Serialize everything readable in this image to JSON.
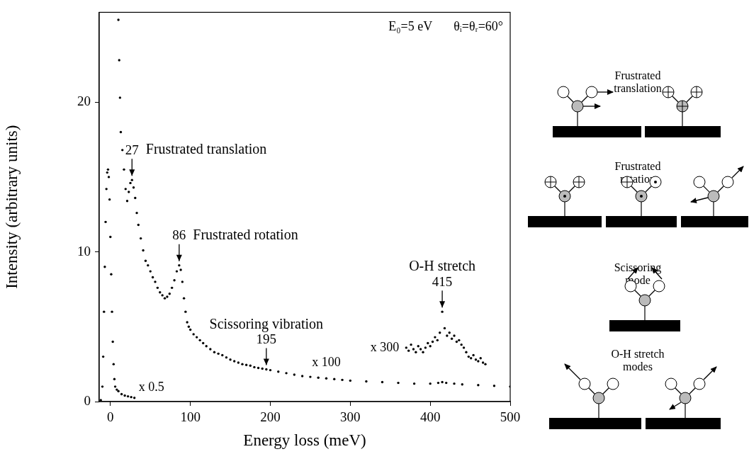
{
  "chart_data": {
    "type": "scatter",
    "xlabel": "Energy loss (meV)",
    "ylabel": "Intensity (arbitrary units)",
    "xlim": [
      -14,
      500
    ],
    "ylim": [
      0,
      26
    ],
    "xticks": [
      0,
      100,
      200,
      300,
      400,
      500
    ],
    "yticks": [
      0,
      10,
      20
    ],
    "grid": false,
    "marker": "dot",
    "annotations": [
      "E₀=5 eV",
      "θᵢ=θᵣ=60°"
    ],
    "series": [
      {
        "name": "x 0.5",
        "color": "#000000",
        "x": [
          -12,
          -10,
          -9,
          -8,
          -7,
          -6,
          -5,
          -4,
          -3,
          -2,
          -1,
          0,
          1,
          2,
          3,
          4,
          5,
          6,
          8,
          10,
          14,
          18,
          22,
          26,
          30
        ],
        "values": [
          0.1,
          1.0,
          3.0,
          6.0,
          9.0,
          12.0,
          14.2,
          15.3,
          15.5,
          15.0,
          13.5,
          11.0,
          8.5,
          6.0,
          4.0,
          2.5,
          1.5,
          1.0,
          0.8,
          0.7,
          0.5,
          0.4,
          0.35,
          0.3,
          0.25
        ]
      },
      {
        "name": "x 100",
        "color": "#000000",
        "x": [
          10,
          11,
          12,
          13,
          15,
          17,
          19,
          21,
          23,
          25,
          27,
          29,
          31,
          33,
          35,
          38,
          41,
          44,
          47,
          50,
          53,
          56,
          59,
          62,
          65,
          68,
          71,
          74,
          77,
          80,
          83,
          86,
          88,
          90,
          92,
          94,
          96,
          98,
          100,
          104,
          108,
          112,
          116,
          120,
          125,
          130,
          135,
          140,
          145,
          150,
          155,
          160,
          165,
          170,
          175,
          180,
          185,
          190,
          195,
          200,
          210,
          220,
          230,
          240,
          250,
          260,
          270,
          280,
          290,
          300,
          320,
          340,
          360,
          380,
          400,
          410,
          415,
          420,
          430,
          440,
          460,
          480,
          500
        ],
        "values": [
          25.5,
          22.8,
          20.3,
          18.0,
          16.8,
          15.5,
          14.2,
          13.4,
          14.0,
          14.6,
          14.8,
          14.3,
          13.6,
          12.6,
          11.8,
          10.9,
          10.1,
          9.4,
          9.1,
          8.7,
          8.3,
          8.0,
          7.6,
          7.3,
          7.1,
          6.9,
          7.0,
          7.2,
          7.6,
          8.1,
          8.7,
          9.1,
          8.8,
          8.0,
          6.9,
          6.0,
          5.3,
          5.0,
          4.8,
          4.5,
          4.3,
          4.1,
          3.9,
          3.7,
          3.5,
          3.3,
          3.2,
          3.1,
          2.95,
          2.8,
          2.7,
          2.6,
          2.5,
          2.45,
          2.4,
          2.3,
          2.25,
          2.2,
          2.15,
          2.1,
          2.0,
          1.9,
          1.8,
          1.7,
          1.65,
          1.6,
          1.55,
          1.5,
          1.45,
          1.4,
          1.35,
          1.3,
          1.25,
          1.2,
          1.2,
          1.25,
          1.3,
          1.25,
          1.2,
          1.15,
          1.1,
          1.05,
          1.0
        ]
      },
      {
        "name": "x 300",
        "color": "#000000",
        "x": [
          370,
          373,
          376,
          379,
          382,
          385,
          388,
          391,
          394,
          397,
          400,
          403,
          406,
          409,
          412,
          415,
          418,
          421,
          424,
          427,
          430,
          433,
          436,
          439,
          442,
          445,
          448,
          451,
          454,
          457,
          460,
          463,
          466,
          469
        ],
        "values": [
          3.6,
          3.4,
          3.8,
          3.5,
          3.3,
          3.7,
          3.5,
          3.3,
          3.6,
          3.9,
          3.7,
          4.0,
          4.3,
          4.1,
          4.6,
          6.0,
          4.9,
          4.4,
          4.6,
          4.2,
          4.4,
          4.0,
          4.1,
          3.8,
          3.6,
          3.3,
          3.0,
          2.9,
          3.1,
          2.8,
          2.7,
          2.9,
          2.6,
          2.5
        ]
      }
    ],
    "peaks": [
      {
        "label": "Frustrated translation",
        "energy": 27
      },
      {
        "label": "Frustrated rotation",
        "energy": 86
      },
      {
        "label": "Scissoring vibration",
        "energy": 195
      },
      {
        "label": "O-H stretch",
        "energy": 415
      }
    ]
  },
  "diagram": {
    "modes": [
      "Frustrated translation",
      "Frustrated rotation",
      "Scissoring mode",
      "O-H stretch modes"
    ]
  }
}
